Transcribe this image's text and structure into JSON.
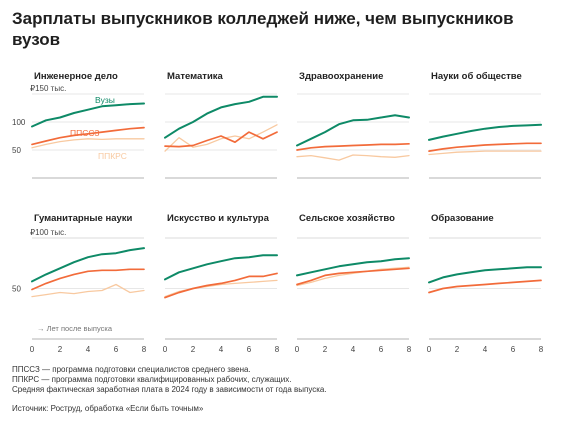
{
  "title": "Зарплаты выпускников колледжей ниже, чем выпускников вузов",
  "notes": [
    "ППССЗ — программа подготовки специалистов среднего звена.",
    "ППКРС — программа подготовки квалифицированных рабочих, служащих.",
    "Средняя фактическая заработная плата в 2024 году в зависимости от года выпуска."
  ],
  "source": "Источник: Роструд, обработка «Если быть точным»",
  "colors": {
    "vuz": "#0e8a67",
    "ppssz": "#f26b3a",
    "ppkrs": "#f8c9a0",
    "grid": "#cfcfcf",
    "axis": "#9a9a9a"
  },
  "axis": {
    "y_top_label": "₽150 тыс.",
    "y_bottom_label": "₽100 тыс.",
    "x_ticks": [
      "0",
      "2",
      "4",
      "6",
      "8"
    ],
    "x_note": "→ Лет после выпуска"
  },
  "chart_data": [
    {
      "type": "line",
      "title": "Инженерное дело",
      "x": [
        0,
        1,
        2,
        3,
        4,
        5,
        6,
        7,
        8
      ],
      "ylim": [
        0,
        150
      ],
      "yticks": [
        50,
        100
      ],
      "labels": [
        "Вузы",
        "ППССЗ",
        "ППКРС"
      ],
      "series": [
        {
          "name": "Вузы",
          "values": [
            92,
            103,
            108,
            116,
            122,
            128,
            130,
            132,
            133
          ]
        },
        {
          "name": "ППССЗ",
          "values": [
            60,
            66,
            72,
            76,
            79,
            82,
            85,
            88,
            90
          ]
        },
        {
          "name": "ППКРС",
          "values": [
            54,
            60,
            65,
            68,
            70,
            69,
            70,
            70,
            70
          ]
        }
      ]
    },
    {
      "type": "line",
      "title": "Математика",
      "x": [
        0,
        1,
        2,
        3,
        4,
        5,
        6,
        7,
        8
      ],
      "ylim": [
        0,
        150
      ],
      "yticks": [
        50,
        100
      ],
      "series": [
        {
          "name": "Вузы",
          "values": [
            72,
            88,
            100,
            115,
            126,
            132,
            136,
            145,
            145
          ]
        },
        {
          "name": "ППССЗ",
          "values": [
            57,
            56,
            58,
            67,
            75,
            64,
            82,
            70,
            82
          ]
        },
        {
          "name": "ППКРС",
          "values": [
            48,
            72,
            55,
            60,
            70,
            75,
            70,
            82,
            95
          ]
        }
      ]
    },
    {
      "type": "line",
      "title": "Здравоохранение",
      "x": [
        0,
        1,
        2,
        3,
        4,
        5,
        6,
        7,
        8
      ],
      "ylim": [
        0,
        150
      ],
      "yticks": [
        50,
        100
      ],
      "series": [
        {
          "name": "Вузы",
          "values": [
            58,
            70,
            82,
            96,
            103,
            104,
            108,
            112,
            108
          ]
        },
        {
          "name": "ППССЗ",
          "values": [
            50,
            54,
            56,
            57,
            58,
            59,
            60,
            60,
            61
          ]
        },
        {
          "name": "ППКРС",
          "values": [
            38,
            40,
            36,
            32,
            41,
            40,
            38,
            37,
            40
          ]
        }
      ]
    },
    {
      "type": "line",
      "title": "Науки об обществе",
      "x": [
        0,
        1,
        2,
        3,
        4,
        5,
        6,
        7,
        8
      ],
      "ylim": [
        0,
        150
      ],
      "yticks": [
        50,
        100
      ],
      "series": [
        {
          "name": "Вузы",
          "values": [
            68,
            74,
            79,
            84,
            88,
            91,
            93,
            94,
            95
          ]
        },
        {
          "name": "ППССЗ",
          "values": [
            48,
            52,
            55,
            57,
            59,
            60,
            61,
            62,
            62
          ]
        },
        {
          "name": "ППКРС",
          "values": [
            42,
            44,
            46,
            47,
            48,
            48,
            48,
            48,
            48
          ]
        }
      ]
    },
    {
      "type": "line",
      "title": "Гуманитарные науки",
      "x": [
        0,
        1,
        2,
        3,
        4,
        5,
        6,
        7,
        8
      ],
      "ylim": [
        0,
        100
      ],
      "yticks": [
        50,
        100
      ],
      "series": [
        {
          "name": "Вузы",
          "values": [
            57,
            64,
            70,
            76,
            81,
            84,
            85,
            88,
            90
          ]
        },
        {
          "name": "ППССЗ",
          "values": [
            49,
            55,
            60,
            64,
            67,
            68,
            68,
            69,
            69
          ]
        },
        {
          "name": "ППКРС",
          "values": [
            42,
            44,
            46,
            45,
            47,
            48,
            54,
            46,
            48
          ]
        }
      ]
    },
    {
      "type": "line",
      "title": "Искусство и культура",
      "x": [
        0,
        1,
        2,
        3,
        4,
        5,
        6,
        7,
        8
      ],
      "ylim": [
        0,
        100
      ],
      "yticks": [
        50,
        100
      ],
      "series": [
        {
          "name": "Вузы",
          "values": [
            59,
            66,
            70,
            74,
            77,
            80,
            81,
            83,
            83
          ]
        },
        {
          "name": "ППССЗ",
          "values": [
            41,
            46,
            50,
            53,
            55,
            58,
            62,
            62,
            65
          ]
        },
        {
          "name": "ППКРС",
          "values": [
            42,
            47,
            50,
            52,
            54,
            55,
            56,
            57,
            58
          ]
        }
      ]
    },
    {
      "type": "line",
      "title": "Сельское хозяйство",
      "x": [
        0,
        1,
        2,
        3,
        4,
        5,
        6,
        7,
        8
      ],
      "ylim": [
        0,
        100
      ],
      "yticks": [
        50,
        100
      ],
      "series": [
        {
          "name": "Вузы",
          "values": [
            63,
            66,
            69,
            72,
            74,
            76,
            77,
            79,
            80
          ]
        },
        {
          "name": "ППССЗ",
          "values": [
            54,
            58,
            63,
            65,
            66,
            67,
            68,
            69,
            70
          ]
        },
        {
          "name": "ППКРС",
          "values": [
            53,
            56,
            60,
            63,
            65,
            67,
            69,
            70,
            71
          ]
        }
      ]
    },
    {
      "type": "line",
      "title": "Образование",
      "x": [
        0,
        1,
        2,
        3,
        4,
        5,
        6,
        7,
        8
      ],
      "ylim": [
        0,
        100
      ],
      "yticks": [
        50,
        100
      ],
      "series": [
        {
          "name": "Вузы",
          "values": [
            56,
            61,
            64,
            66,
            68,
            69,
            70,
            71,
            71
          ]
        },
        {
          "name": "ППССЗ",
          "values": [
            46,
            50,
            52,
            53,
            54,
            55,
            56,
            57,
            58
          ]
        }
      ]
    }
  ]
}
